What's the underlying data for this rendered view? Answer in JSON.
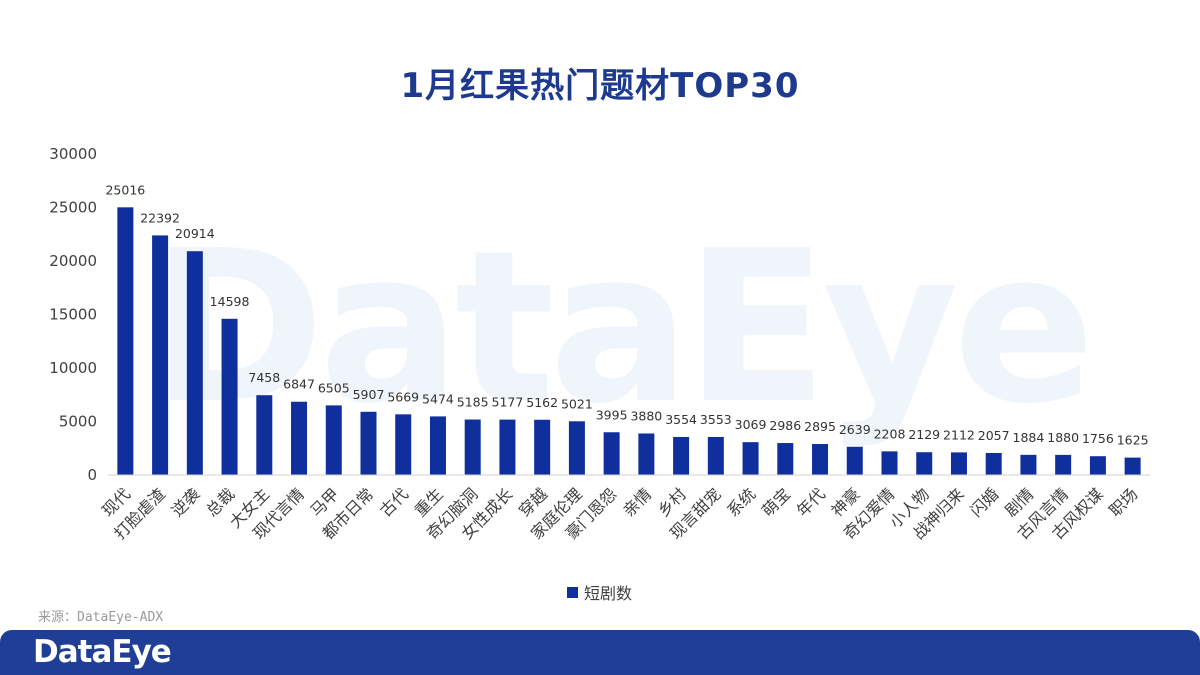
{
  "header": {
    "title": "1月红果热门题材TOP30"
  },
  "watermark_text": "DataEye",
  "source": "来源：DataEye-ADX",
  "footer": {
    "logo": "DataEye"
  },
  "colors": {
    "bar": "#0e2f9c",
    "title": "#1d3a8f",
    "footer": "#1f3e96"
  },
  "chart_data": {
    "type": "bar",
    "categories": [
      "现代",
      "打脸虐渣",
      "逆袭",
      "总裁",
      "大女主",
      "现代言情",
      "马甲",
      "都市日常",
      "古代",
      "重生",
      "奇幻脑洞",
      "女性成长",
      "穿越",
      "家庭伦理",
      "豪门恩怨",
      "亲情",
      "乡村",
      "现言甜宠",
      "系统",
      "萌宝",
      "年代",
      "神豪",
      "奇幻爱情",
      "小人物",
      "战神归来",
      "闪婚",
      "剧情",
      "古风言情",
      "古风权谋",
      "职场"
    ],
    "series": [
      {
        "name": "短剧数",
        "values": [
          25016,
          22392,
          20914,
          14598,
          7458,
          6847,
          6505,
          5907,
          5669,
          5474,
          5185,
          5177,
          5162,
          5021,
          3995,
          3880,
          3554,
          3553,
          3069,
          2986,
          2895,
          2639,
          2208,
          2129,
          2112,
          2057,
          1884,
          1880,
          1756,
          1625
        ]
      }
    ],
    "ylim": [
      0,
      30000
    ],
    "yticks": [
      0,
      5000,
      10000,
      15000,
      20000,
      25000,
      30000
    ],
    "legend": "bottom",
    "grid": false
  }
}
